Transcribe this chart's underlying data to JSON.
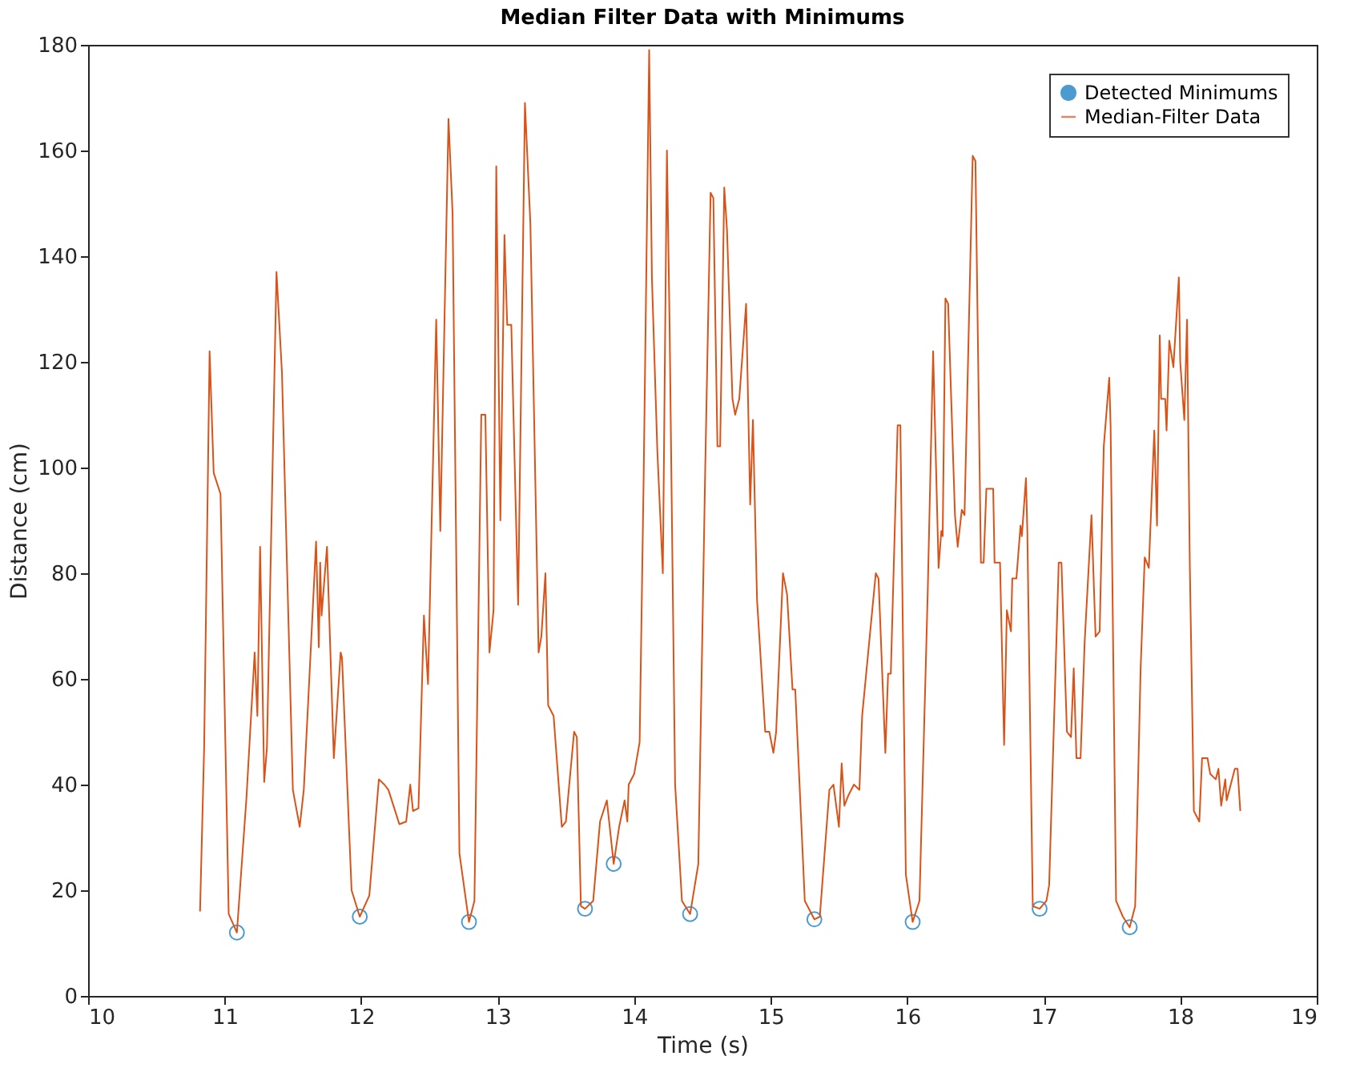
{
  "chart_data": {
    "type": "line",
    "title": "Median Filter Data with Minimums",
    "xlabel": "Time (s)",
    "ylabel": "Distance (cm)",
    "xlim": [
      10,
      19
    ],
    "xticks": [
      10,
      11,
      12,
      13,
      14,
      15,
      16,
      17,
      18,
      19
    ],
    "ylim": [
      0,
      180
    ],
    "yticks": [
      0,
      20,
      40,
      60,
      80,
      100,
      120,
      140,
      160,
      180
    ],
    "grid": false,
    "legend": "top right",
    "series": [
      {
        "name": "Detected Minimums",
        "type": "scatter",
        "marker": "circle",
        "color": "#0072bd",
        "x": [
          11.09,
          11.99,
          12.79,
          13.64,
          13.85,
          14.41,
          15.32,
          16.04,
          16.97,
          17.63
        ],
        "values": [
          12,
          15,
          14,
          16.5,
          25,
          15.5,
          14.5,
          14,
          16.5,
          13
        ]
      },
      {
        "name": "Median-Filter Data",
        "marker": "none",
        "color": "#d95319",
        "x": [
          10.82,
          10.85,
          10.89,
          10.92,
          10.97,
          11.03,
          11.09,
          11.16,
          11.22,
          11.24,
          11.26,
          11.29,
          11.31,
          11.38,
          11.42,
          11.5,
          11.55,
          11.58,
          11.63,
          11.67,
          11.69,
          11.7,
          11.71,
          11.75,
          11.8,
          11.81,
          11.85,
          11.86,
          11.93,
          11.99,
          12.06,
          12.13,
          12.17,
          12.2,
          12.28,
          12.33,
          12.36,
          12.38,
          12.42,
          12.46,
          12.49,
          12.55,
          12.58,
          12.64,
          12.67,
          12.72,
          12.79,
          12.83,
          12.88,
          12.91,
          12.94,
          12.97,
          12.99,
          13.02,
          13.05,
          13.07,
          13.1,
          13.15,
          13.2,
          13.24,
          13.3,
          13.32,
          13.35,
          13.37,
          13.41,
          13.47,
          13.5,
          13.56,
          13.58,
          13.61,
          13.64,
          13.7,
          13.75,
          13.8,
          13.85,
          13.89,
          13.93,
          13.95,
          13.96,
          14.0,
          14.04,
          14.07,
          14.11,
          14.13,
          14.17,
          14.21,
          14.24,
          14.26,
          14.3,
          14.35,
          14.41,
          14.47,
          14.52,
          14.56,
          14.58,
          14.61,
          14.63,
          14.66,
          14.68,
          14.72,
          14.74,
          14.77,
          14.82,
          14.85,
          14.87,
          14.9,
          14.96,
          14.99,
          15.02,
          15.04,
          15.09,
          15.12,
          15.16,
          15.18,
          15.25,
          15.32,
          15.36,
          15.43,
          15.46,
          15.5,
          15.52,
          15.54,
          15.57,
          15.61,
          15.65,
          15.67,
          15.77,
          15.79,
          15.84,
          15.86,
          15.88,
          15.93,
          15.95,
          15.99,
          16.04,
          16.09,
          16.15,
          16.19,
          16.23,
          16.25,
          16.26,
          16.28,
          16.3,
          16.35,
          16.37,
          16.4,
          16.42,
          16.48,
          16.5,
          16.54,
          16.56,
          16.58,
          16.63,
          16.64,
          16.68,
          16.71,
          16.73,
          16.76,
          16.77,
          16.8,
          16.83,
          16.84,
          16.87,
          16.88,
          16.92,
          16.97,
          17.02,
          17.04,
          17.11,
          17.13,
          17.17,
          17.2,
          17.22,
          17.24,
          17.27,
          17.3,
          17.35,
          17.38,
          17.41,
          17.44,
          17.48,
          17.49,
          17.53,
          17.58,
          17.63,
          17.67,
          17.71,
          17.74,
          17.77,
          17.81,
          17.83,
          17.85,
          17.86,
          17.89,
          17.9,
          17.92,
          17.95,
          17.99,
          18.0,
          18.03,
          18.05,
          18.07,
          18.1,
          18.14,
          18.16,
          18.2,
          18.22,
          18.26,
          18.28,
          18.3,
          18.33,
          18.34,
          18.37,
          18.4,
          18.42,
          18.44
        ],
        "values": [
          16,
          47,
          122,
          99,
          95,
          15.5,
          12,
          37.5,
          65,
          53,
          85,
          40.5,
          47,
          137,
          118,
          39,
          32,
          39,
          65,
          86,
          66,
          82,
          72,
          85,
          45,
          49,
          65,
          64,
          20,
          15,
          19,
          41,
          40,
          39,
          32.5,
          33,
          40,
          35,
          35.5,
          72,
          59,
          128,
          88,
          166,
          148,
          27,
          14,
          18,
          110,
          110,
          65,
          73,
          157,
          90,
          144,
          127,
          127,
          74,
          169,
          146,
          65,
          68,
          80,
          55,
          53,
          32,
          33,
          50,
          49,
          17,
          16.5,
          18,
          33,
          37,
          25,
          32,
          37,
          33,
          40,
          42,
          48,
          99,
          179,
          136,
          103,
          80,
          160,
          126,
          40,
          18,
          15.5,
          25,
          99,
          152,
          151,
          104,
          104,
          153,
          145,
          113,
          110,
          113,
          131,
          93,
          109,
          75,
          50,
          50,
          46,
          50,
          80,
          76,
          58,
          58,
          18,
          14.5,
          15,
          39,
          40,
          32,
          44,
          36,
          38,
          40,
          39,
          53,
          80,
          79,
          46,
          61,
          61,
          108,
          108,
          23,
          14,
          18,
          76,
          122,
          81,
          88,
          87,
          132,
          131,
          91,
          85,
          92,
          91,
          159,
          158,
          82,
          82,
          96,
          96,
          82,
          82,
          47.5,
          73,
          69,
          79,
          79,
          89,
          87,
          98,
          88,
          17,
          16.5,
          18,
          21,
          82,
          82,
          50,
          49,
          62,
          45,
          45,
          67,
          91,
          68,
          69,
          104,
          117,
          108,
          18,
          15,
          13,
          17,
          62,
          83,
          81,
          107,
          89,
          125,
          113,
          113,
          107,
          124,
          119,
          136,
          120,
          109,
          128,
          82,
          35,
          33,
          45,
          45,
          42,
          41,
          43,
          36,
          41,
          37,
          40,
          43,
          43,
          35
        ]
      }
    ]
  }
}
